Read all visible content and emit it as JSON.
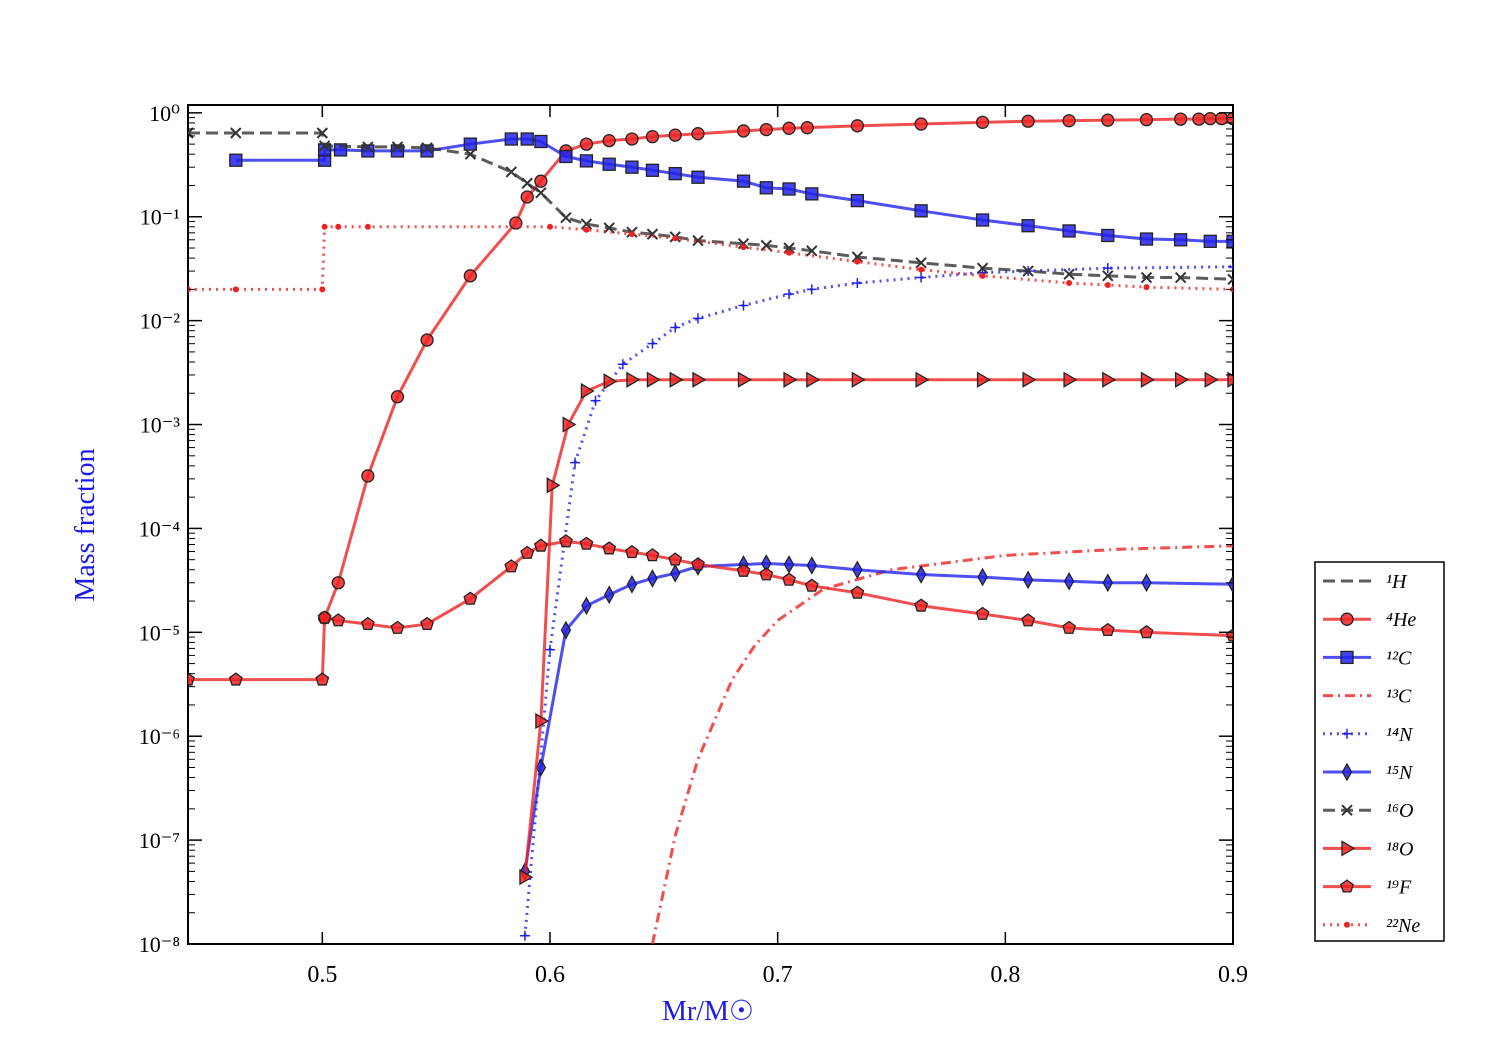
{
  "chart_data": {
    "type": "line",
    "log_y": true,
    "xlabel": "Mr/M☉",
    "ylabel": "Mass fraction",
    "xlim": [
      0.441,
      0.9
    ],
    "ylim": [
      1e-08,
      1.19
    ],
    "xticks": [
      0.5,
      0.6,
      0.7,
      0.8,
      0.9
    ],
    "yticks": [
      {
        "value": 1,
        "label": "10⁰"
      },
      {
        "value": 0.1,
        "label": "10⁻¹"
      },
      {
        "value": 0.01,
        "label": "10⁻²"
      },
      {
        "value": 0.001,
        "label": "10⁻³"
      },
      {
        "value": 0.0001,
        "label": "10⁻⁴"
      },
      {
        "value": 1e-05,
        "label": "10⁻⁵"
      },
      {
        "value": 1e-06,
        "label": "10⁻⁶"
      },
      {
        "value": 1e-07,
        "label": "10⁻⁷"
      },
      {
        "value": 1e-08,
        "label": "10⁻⁸"
      }
    ],
    "legend": "outside-right-bottom",
    "series": [
      {
        "name": "¹H",
        "color": "#333333",
        "linestyle": "dashed",
        "marker": "none"
      },
      {
        "name": "⁴He",
        "color": "#ee2222",
        "linestyle": "solid",
        "marker": "circle",
        "x": [
          0.501,
          0.507,
          0.52,
          0.533,
          0.546,
          0.565,
          0.585,
          0.59,
          0.596,
          0.607,
          0.616,
          0.626,
          0.636,
          0.645,
          0.655,
          0.665,
          0.685,
          0.695,
          0.705,
          0.713,
          0.735,
          0.763,
          0.79,
          0.81,
          0.828,
          0.845,
          0.862,
          0.877,
          0.885,
          0.89,
          0.895,
          0.9
        ],
        "values": [
          1.38e-05,
          3e-05,
          0.00032,
          0.00185,
          0.0065,
          0.027,
          0.087,
          0.155,
          0.22,
          0.43,
          0.5,
          0.54,
          0.56,
          0.59,
          0.61,
          0.63,
          0.67,
          0.69,
          0.71,
          0.72,
          0.75,
          0.78,
          0.81,
          0.83,
          0.84,
          0.85,
          0.86,
          0.87,
          0.87,
          0.88,
          0.88,
          0.88
        ]
      },
      {
        "name": "¹²C",
        "color": "#2222ee",
        "linestyle": "solid",
        "marker": "square",
        "x": [
          0.462,
          0.501,
          0.501,
          0.508,
          0.52,
          0.533,
          0.546,
          0.565,
          0.583,
          0.59,
          0.596,
          0.607,
          0.616,
          0.626,
          0.636,
          0.645,
          0.655,
          0.665,
          0.685,
          0.695,
          0.705,
          0.715,
          0.735,
          0.763,
          0.79,
          0.81,
          0.828,
          0.845,
          0.862,
          0.877,
          0.89,
          0.9
        ],
        "values": [
          0.35,
          0.35,
          0.44,
          0.44,
          0.43,
          0.43,
          0.43,
          0.5,
          0.56,
          0.56,
          0.53,
          0.38,
          0.345,
          0.32,
          0.3,
          0.28,
          0.26,
          0.24,
          0.22,
          0.19,
          0.185,
          0.166,
          0.143,
          0.114,
          0.093,
          0.082,
          0.073,
          0.066,
          0.061,
          0.06,
          0.058,
          0.058
        ]
      },
      {
        "name": "¹³C",
        "color": "#ee2222",
        "linestyle": "dashdot",
        "marker": "none",
        "x": [
          0.645,
          0.655,
          0.665,
          0.68,
          0.69,
          0.7,
          0.72,
          0.75,
          0.8,
          0.85,
          0.9
        ],
        "values": [
          1e-08,
          1.1e-07,
          6e-07,
          3.5e-06,
          7.5e-06,
          1.3e-05,
          2.6e-05,
          4e-05,
          5.5e-05,
          6.3e-05,
          6.8e-05
        ]
      },
      {
        "name": "¹⁴N",
        "color": "#2222ee",
        "linestyle": "dotted",
        "marker": "plus",
        "x": [
          0.589,
          0.6,
          0.611,
          0.62,
          0.632,
          0.645,
          0.655,
          0.665,
          0.685,
          0.705,
          0.715,
          0.735,
          0.763,
          0.79,
          0.81,
          0.845,
          0.9
        ],
        "values": [
          1.2e-08,
          6.8e-06,
          0.00043,
          0.0017,
          0.0038,
          0.006,
          0.0086,
          0.0105,
          0.014,
          0.018,
          0.02,
          0.023,
          0.026,
          0.029,
          0.03,
          0.032,
          0.033
        ]
      },
      {
        "name": "¹⁵N",
        "color": "#2222ee",
        "linestyle": "solid",
        "marker": "diamond",
        "x": [
          0.589,
          0.596,
          0.607,
          0.616,
          0.626,
          0.636,
          0.645,
          0.655,
          0.665,
          0.685,
          0.695,
          0.705,
          0.715,
          0.735,
          0.763,
          0.79,
          0.81,
          0.828,
          0.845,
          0.862,
          0.9
        ],
        "values": [
          5e-08,
          5e-07,
          1.05e-05,
          1.8e-05,
          2.3e-05,
          2.9e-05,
          3.3e-05,
          3.7e-05,
          4.3e-05,
          4.5e-05,
          4.6e-05,
          4.5e-05,
          4.4e-05,
          4e-05,
          3.6e-05,
          3.4e-05,
          3.2e-05,
          3.1e-05,
          3e-05,
          3e-05,
          2.9e-05
        ]
      },
      {
        "name": "¹⁶O",
        "color": "#333333",
        "linestyle": "dashed",
        "marker": "x",
        "x": [
          0.441,
          0.462,
          0.5,
          0.501,
          0.52,
          0.533,
          0.546,
          0.565,
          0.583,
          0.59,
          0.596,
          0.607,
          0.616,
          0.626,
          0.636,
          0.645,
          0.655,
          0.665,
          0.685,
          0.695,
          0.705,
          0.715,
          0.735,
          0.763,
          0.79,
          0.81,
          0.828,
          0.845,
          0.862,
          0.877,
          0.9
        ],
        "values": [
          0.64,
          0.64,
          0.64,
          0.48,
          0.47,
          0.47,
          0.46,
          0.4,
          0.27,
          0.21,
          0.17,
          0.098,
          0.085,
          0.078,
          0.071,
          0.068,
          0.064,
          0.059,
          0.055,
          0.053,
          0.05,
          0.047,
          0.041,
          0.036,
          0.032,
          0.03,
          0.028,
          0.027,
          0.026,
          0.026,
          0.025
        ]
      },
      {
        "name": "¹⁸O",
        "color": "#ee2222",
        "linestyle": "solid",
        "marker": "triangle",
        "x": [
          0.589,
          0.596,
          0.601,
          0.608,
          0.616,
          0.626,
          0.636,
          0.645,
          0.655,
          0.665,
          0.685,
          0.705,
          0.715,
          0.735,
          0.763,
          0.79,
          0.81,
          0.828,
          0.845,
          0.862,
          0.877,
          0.89,
          0.9
        ],
        "values": [
          4.4e-08,
          1.4e-06,
          0.00026,
          0.001,
          0.0021,
          0.0026,
          0.0027,
          0.0027,
          0.0027,
          0.0027,
          0.0027,
          0.0027,
          0.0027,
          0.0027,
          0.0027,
          0.0027,
          0.0027,
          0.0027,
          0.0027,
          0.0027,
          0.0027,
          0.0027,
          0.0027
        ]
      },
      {
        "name": "¹⁹F",
        "color": "#ee2222",
        "linestyle": "solid",
        "marker": "pentagon",
        "x": [
          0.441,
          0.462,
          0.5,
          0.501,
          0.507,
          0.52,
          0.533,
          0.546,
          0.565,
          0.583,
          0.59,
          0.596,
          0.607,
          0.616,
          0.626,
          0.636,
          0.645,
          0.655,
          0.665,
          0.685,
          0.695,
          0.705,
          0.715,
          0.735,
          0.763,
          0.79,
          0.81,
          0.828,
          0.845,
          0.862,
          0.9
        ],
        "values": [
          3.5e-06,
          3.5e-06,
          3.5e-06,
          1.38e-05,
          1.3e-05,
          1.2e-05,
          1.1e-05,
          1.2e-05,
          2.1e-05,
          4.3e-05,
          5.8e-05,
          6.8e-05,
          7.5e-05,
          7.1e-05,
          6.4e-05,
          5.9e-05,
          5.5e-05,
          5e-05,
          4.5e-05,
          3.9e-05,
          3.6e-05,
          3.2e-05,
          2.8e-05,
          2.4e-05,
          1.8e-05,
          1.5e-05,
          1.3e-05,
          1.1e-05,
          1.05e-05,
          1e-05,
          9.3e-06
        ]
      },
      {
        "name": "²²Ne",
        "color": "#ee2222",
        "linestyle": "dotted",
        "marker": "dot",
        "x": [
          0.441,
          0.462,
          0.5,
          0.501,
          0.507,
          0.52,
          0.6,
          0.616,
          0.636,
          0.655,
          0.685,
          0.705,
          0.735,
          0.763,
          0.79,
          0.828,
          0.845,
          0.862,
          0.9
        ],
        "values": [
          0.02,
          0.02,
          0.02,
          0.08,
          0.08,
          0.08,
          0.08,
          0.075,
          0.068,
          0.062,
          0.051,
          0.045,
          0.037,
          0.031,
          0.027,
          0.023,
          0.022,
          0.021,
          0.02
        ]
      }
    ]
  }
}
